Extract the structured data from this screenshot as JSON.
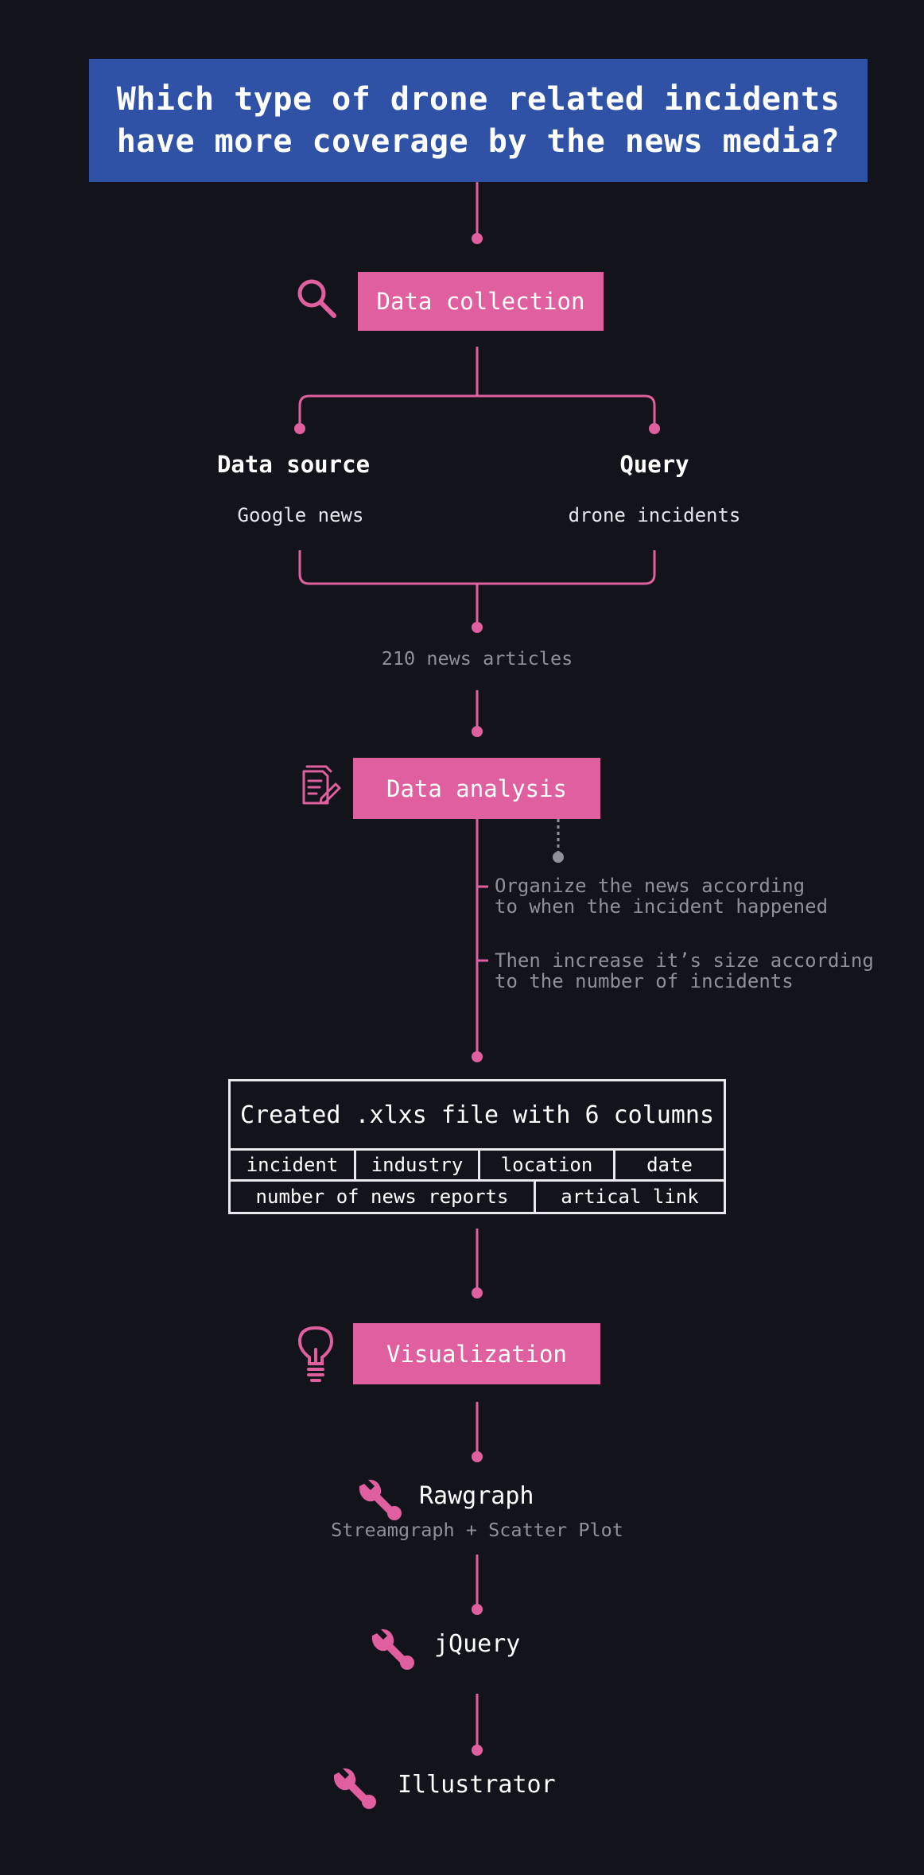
{
  "title": {
    "line1": "Which type of drone related incidents",
    "line2": "have more coverage by the news media?"
  },
  "colors": {
    "background": "#12131b",
    "title_box": "#2f52a6",
    "accent": "#df5f9f",
    "muted_text": "#8f909a",
    "table_border": "#e9e9ee"
  },
  "collection": {
    "label": "Data collection",
    "icon": "search-icon",
    "source": {
      "heading": "Data source",
      "value": "Google news"
    },
    "query": {
      "heading": "Query",
      "value": "drone incidents"
    },
    "result": "210 news articles"
  },
  "analysis": {
    "label": "Data analysis",
    "icon": "document-edit-icon",
    "notes": [
      {
        "line1": "Organize the news according",
        "line2": "to when the incident happened"
      },
      {
        "line1": "Then increase it’s size according",
        "line2": "to the number of incidents"
      }
    ]
  },
  "table": {
    "title": "Created .xlxs file with 6 columns",
    "row1": [
      "incident",
      "industry",
      "location",
      "date"
    ],
    "row2": [
      "number of news reports",
      "artical link"
    ]
  },
  "visualization": {
    "label": "Visualization",
    "icon": "lightbulb-icon",
    "tools": [
      {
        "name": "Rawgraph",
        "detail": "Streamgraph + Scatter Plot",
        "icon": "wrench-icon"
      },
      {
        "name": "jQuery",
        "icon": "wrench-icon"
      },
      {
        "name": "Illustrator",
        "icon": "wrench-icon"
      }
    ]
  }
}
